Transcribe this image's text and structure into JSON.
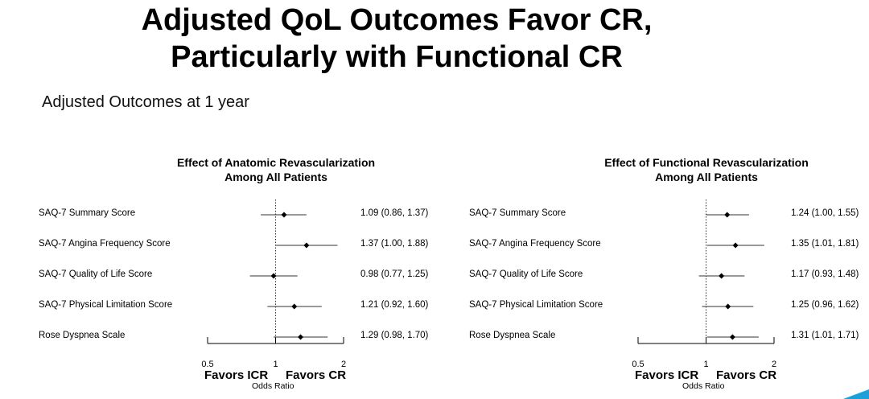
{
  "slide": {
    "title_line1": "Adjusted QoL Outcomes Favor CR,",
    "title_line2": "Particularly with Functional CR",
    "subtitle": "Adjusted Outcomes at 1 year",
    "accent_color": "#1ba0d8"
  },
  "chart_data": [
    {
      "type": "forest",
      "title_line1": "Effect of Anatomic Revascularization",
      "title_line2": "Among All Patients",
      "xlabel": "Odds Ratio",
      "favors_left": "Favors ICR",
      "favors_right": "Favors CR",
      "xlim": [
        0.5,
        2
      ],
      "reference": 1,
      "ticks": [
        0.5,
        1,
        2
      ],
      "tick_labels": [
        "0.5",
        "1",
        "2"
      ],
      "rows": [
        {
          "label": "SAQ-7 Summary Score",
          "or": 1.09,
          "lo": 0.86,
          "hi": 1.37,
          "ci_text": "1.09 (0.86, 1.37)"
        },
        {
          "label": "SAQ-7 Angina Frequency Score",
          "or": 1.37,
          "lo": 1.0,
          "hi": 1.88,
          "ci_text": "1.37 (1.00, 1.88)"
        },
        {
          "label": "SAQ-7 Quality of Life Score",
          "or": 0.98,
          "lo": 0.77,
          "hi": 1.25,
          "ci_text": "0.98 (0.77, 1.25)"
        },
        {
          "label": "SAQ-7 Physical Limitation Score",
          "or": 1.21,
          "lo": 0.92,
          "hi": 1.6,
          "ci_text": "1.21 (0.92, 1.60)"
        },
        {
          "label": "Rose Dyspnea Scale",
          "or": 1.29,
          "lo": 0.98,
          "hi": 1.7,
          "ci_text": "1.29 (0.98, 1.70)"
        }
      ]
    },
    {
      "type": "forest",
      "title_line1": "Effect of Functional Revascularization",
      "title_line2": "Among All Patients",
      "xlabel": "Odds Ratio",
      "favors_left": "Favors ICR",
      "favors_right": "Favors CR",
      "xlim": [
        0.5,
        2
      ],
      "reference": 1,
      "ticks": [
        0.5,
        1,
        2
      ],
      "tick_labels": [
        "0.5",
        "1",
        "2"
      ],
      "rows": [
        {
          "label": "SAQ-7 Summary Score",
          "or": 1.24,
          "lo": 1.0,
          "hi": 1.55,
          "ci_text": "1.24 (1.00, 1.55)"
        },
        {
          "label": "SAQ-7 Angina Frequency Score",
          "or": 1.35,
          "lo": 1.01,
          "hi": 1.81,
          "ci_text": "1.35 (1.01, 1.81)"
        },
        {
          "label": "SAQ-7 Quality of Life Score",
          "or": 1.17,
          "lo": 0.93,
          "hi": 1.48,
          "ci_text": "1.17 (0.93, 1.48)"
        },
        {
          "label": "SAQ-7 Physical Limitation Score",
          "or": 1.25,
          "lo": 0.96,
          "hi": 1.62,
          "ci_text": "1.25 (0.96, 1.62)"
        },
        {
          "label": "Rose Dyspnea Scale",
          "or": 1.31,
          "lo": 1.01,
          "hi": 1.71,
          "ci_text": "1.31 (1.01, 1.71)"
        }
      ]
    }
  ]
}
